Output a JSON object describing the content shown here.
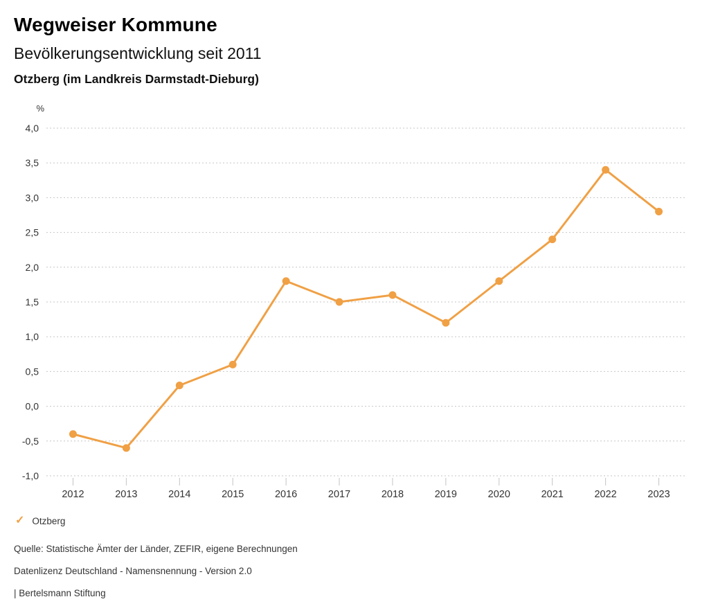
{
  "header": {
    "title": "Wegweiser Kommune",
    "subtitle": "Bevölkerungsentwicklung seit 2011",
    "region": "Otzberg (im Landkreis Darmstadt-Dieburg)"
  },
  "chart_data": {
    "type": "line",
    "title": "Bevölkerungsentwicklung seit 2011",
    "subtitle": "Otzberg (im Landkreis Darmstadt-Dieburg)",
    "unit_label": "%",
    "categories": [
      "2012",
      "2013",
      "2014",
      "2015",
      "2016",
      "2017",
      "2018",
      "2019",
      "2020",
      "2021",
      "2022",
      "2023"
    ],
    "series": [
      {
        "name": "Otzberg",
        "color": "#f0a045",
        "values": [
          -0.4,
          -0.6,
          0.3,
          0.6,
          1.8,
          1.5,
          1.6,
          1.2,
          1.8,
          2.4,
          3.4,
          2.8
        ]
      }
    ],
    "ylim": [
      -1.0,
      4.0
    ],
    "ytick_step": 0.5,
    "decimal_separator": ",",
    "grid": "horizontal-dotted",
    "legend_position": "bottom-left"
  },
  "legend": {
    "check_icon": "✓",
    "label": "Otzberg",
    "color": "#f0a045"
  },
  "footer": {
    "source": "Quelle: Statistische Ämter der Länder, ZEFIR, eigene Berechnungen",
    "license": "Datenlizenz Deutschland - Namensnennung - Version 2.0",
    "attribution": "| Bertelsmann Stiftung"
  },
  "colors": {
    "accent": "#f0a045",
    "grid": "#c6c6c6",
    "text": "#333333",
    "title": "#000000",
    "background": "#ffffff"
  }
}
